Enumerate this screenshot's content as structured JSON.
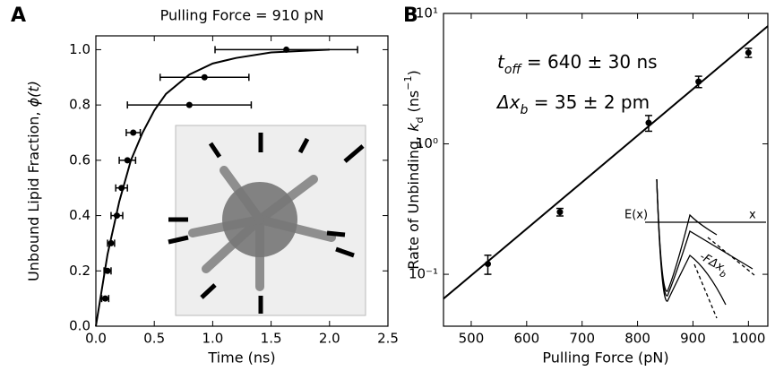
{
  "chart_data": [
    {
      "type": "scatter",
      "panel": "A",
      "title": "Pulling Force = 910 pN",
      "x_label": "Time (ns)",
      "y_label": [
        "Unbound Lipid Fraction, ",
        "ϕ(t)"
      ],
      "x": [
        0.08,
        0.1,
        0.13,
        0.18,
        0.22,
        0.27,
        0.32,
        0.8,
        0.93,
        1.63
      ],
      "values": [
        0.1,
        0.2,
        0.3,
        0.4,
        0.5,
        0.6,
        0.7,
        0.8,
        0.9,
        1.0
      ],
      "xerr": [
        0.03,
        0.03,
        0.03,
        0.05,
        0.05,
        0.07,
        0.06,
        0.53,
        0.38,
        0.61
      ],
      "color": "#000000",
      "fit": {
        "x": [
          0,
          0.1,
          0.2,
          0.3,
          0.4,
          0.5,
          0.6,
          0.8,
          1.0,
          1.2,
          1.5,
          2.0
        ],
        "values": [
          0,
          0.26,
          0.45,
          0.6,
          0.7,
          0.78,
          0.84,
          0.91,
          0.95,
          0.97,
          0.99,
          1.0
        ]
      },
      "xlim": [
        0,
        2.5
      ],
      "ylim": [
        0,
        1.05
      ],
      "xticks": [
        {
          "value": 0,
          "label": "0.0"
        },
        0.5,
        {
          "value": 1,
          "label": "1.0"
        },
        1.5,
        {
          "value": 2,
          "label": "2.0"
        },
        2.5
      ],
      "yticks": [
        {
          "value": 0,
          "label": "0.0"
        },
        0.2,
        0.4,
        0.6,
        0.8,
        {
          "value": 1,
          "label": "1.0"
        }
      ],
      "log_y": false
    },
    {
      "type": "scatter",
      "panel": "B",
      "x_label": "Pulling Force (pN)",
      "y_label": [
        "Rate of Unbinding, ",
        "k",
        "d",
        " (ns",
        "−1",
        ")"
      ],
      "x": [
        530,
        660,
        820,
        910,
        1000
      ],
      "values": [
        0.12,
        0.3,
        1.45,
        3.0,
        5.0
      ],
      "yerr": [
        0.02,
        0.02,
        0.2,
        0.3,
        0.4
      ],
      "color": "#000000",
      "fit": {
        "x": [
          450,
          1035
        ],
        "values": [
          0.065,
          8
        ]
      },
      "xlim": [
        450,
        1035
      ],
      "ylim": [
        0.04,
        10
      ],
      "xticks": [
        500,
        600,
        700,
        800,
        900,
        1000
      ],
      "yticks": [
        {
          "value": 0.1,
          "label": "10⁻¹"
        },
        {
          "value": 1,
          "label": "10⁰"
        },
        {
          "value": 10,
          "label": "10¹"
        }
      ],
      "log_y": true,
      "annotations": [
        [
          "t",
          "off",
          " = 640  ± 30 ns"
        ],
        [
          "Δx",
          "b",
          " = 35  ± 2 pm"
        ]
      ],
      "inset": {
        "energy": "E(x)",
        "coordinate": "x",
        "work": [
          "-FΔx",
          "b"
        ]
      }
    }
  ]
}
